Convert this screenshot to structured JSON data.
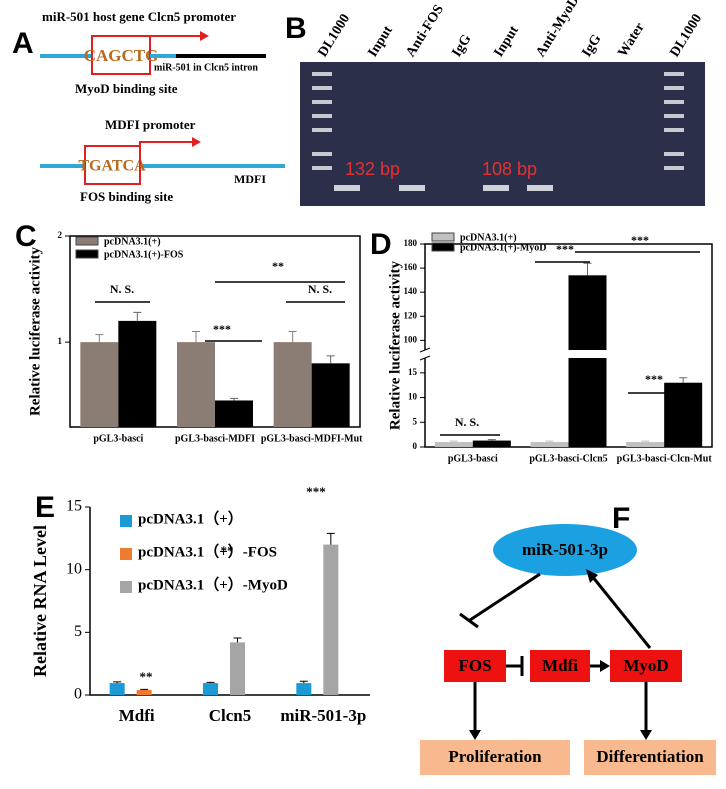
{
  "panel_a": {
    "label": "A",
    "promoter1": "miR-501 host gene Clcn5 promoter",
    "logo1": "CAGCTG",
    "intron": "miR-501 in Clcn5 intron",
    "site1": "MyoD binding site",
    "promoter2": "MDFI promoter",
    "logo2": "TGATCA",
    "gene2": "MDFI",
    "site2": "FOS binding site"
  },
  "panel_b": {
    "label": "B",
    "lanes": [
      "DL1000",
      "Input",
      "Anti-FOS",
      "IgG",
      "Input",
      "Anti-MyoD",
      "IgG",
      "Water",
      "DL1000"
    ],
    "bands": [
      "132 bp",
      "108 bp"
    ]
  },
  "panel_f": {
    "label": "F",
    "nodes": [
      "miR-501-3p",
      "FOS",
      "Mdfi",
      "MyoD",
      "Proliferation",
      "Differentiation"
    ]
  },
  "chart_data": [
    {
      "type": "bar",
      "label": "C",
      "y_label": "Relative luciferase activity",
      "categories": [
        "pGL3-basci",
        "pGL3-basci-MDFI",
        "pGL3-basci-MDFI-Mut"
      ],
      "series": [
        {
          "name": "pcDNA3.1(+)",
          "color": "#8b7d74",
          "values": [
            1,
            1,
            1
          ],
          "errors": [
            0.07,
            0.1,
            0.1
          ]
        },
        {
          "name": "pcDNA3.1(+)-FOS",
          "color": "#000000",
          "values": [
            1.2,
            0.45,
            0.8
          ],
          "errors": [
            0.08,
            0.02,
            0.07
          ]
        }
      ],
      "ylim": [
        0.2,
        2
      ],
      "yticks": [
        1,
        2
      ],
      "annotations": [
        "N. S.",
        "***",
        "N. S.",
        "**"
      ]
    },
    {
      "type": "bar",
      "label": "D",
      "y_label": "Relative luciferase activity",
      "categories": [
        "pGL3-basci",
        "pGL3-basci-Clcn5",
        "pGL3-basci-Clcn-Mut"
      ],
      "series": [
        {
          "name": "pcDNA3.1(+)",
          "color": "#c0c0c0",
          "values": [
            1,
            1,
            1
          ],
          "errors": [
            0.2,
            0.2,
            0.2
          ]
        },
        {
          "name": "pcDNA3.1(+)-MyoD",
          "color": "#000000",
          "values": [
            1.3,
            154,
            13
          ],
          "errors": [
            0.2,
            10,
            1
          ]
        }
      ],
      "ylim": [
        0,
        180
      ],
      "ybreak": [
        18,
        92
      ],
      "yticks": [
        0,
        5,
        10,
        15,
        100,
        120,
        140,
        160,
        180
      ],
      "annotations": [
        "N. S.",
        "***",
        "***",
        "***"
      ]
    },
    {
      "type": "bar",
      "label": "E",
      "y_label": "Relative RNA Level",
      "categories": [
        "Mdfi",
        "Clcn5",
        "miR-501-3p"
      ],
      "series": [
        {
          "name": "pcDNA3.1（+）",
          "color": "#1b9ad6",
          "values": [
            0.95,
            0.95,
            0.95
          ],
          "errors": [
            0.1,
            0.06,
            0.15
          ]
        },
        {
          "name": "pcDNA3.1（+）-FOS",
          "color": "#ee7b30",
          "values": [
            0.4,
            null,
            null
          ],
          "errors": [
            0.05,
            null,
            null
          ]
        },
        {
          "name": "pcDNA3.1（+）-MyoD",
          "color": "#a5a5a5",
          "values": [
            null,
            4.2,
            12
          ],
          "errors": [
            null,
            0.35,
            0.9
          ]
        }
      ],
      "ylim": [
        0,
        15
      ],
      "yticks": [
        0,
        5,
        10,
        15
      ],
      "annotations": [
        "**",
        "**",
        "***"
      ]
    }
  ]
}
